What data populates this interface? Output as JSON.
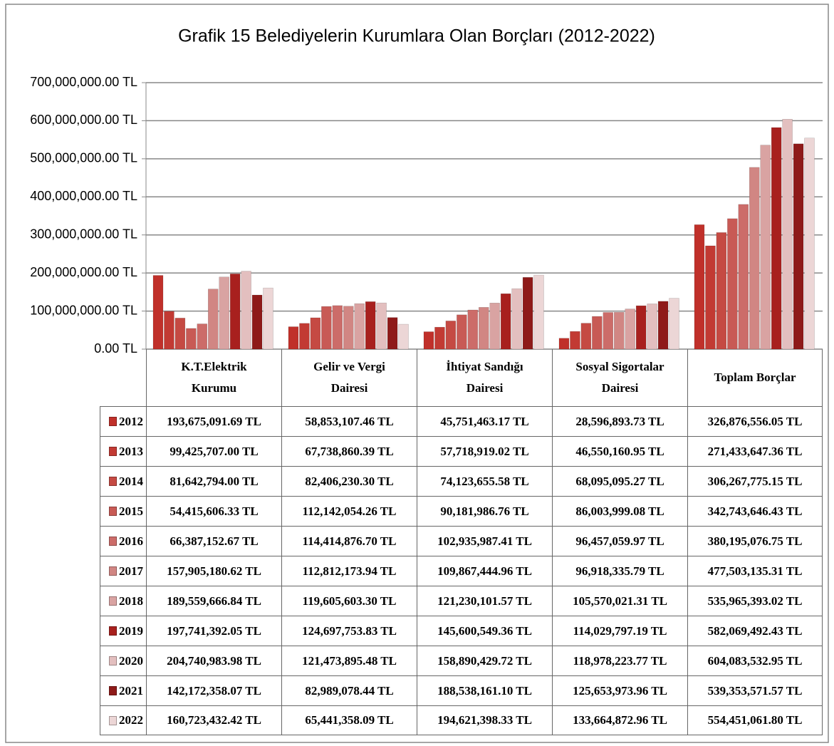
{
  "chart_data": {
    "type": "bar",
    "title": "Grafik 15  Belediyelerin Kurumlara Olan Borçları (2012-2022)",
    "categories": [
      "K.T.Elektrik Kurumu",
      "Gelir ve Vergi Dairesi",
      "İhtiyat Sandığı Dairesi",
      "Sosyal Sigortalar Dairesi",
      "Toplam Borçlar"
    ],
    "ylim": [
      0,
      700000000
    ],
    "yticks": [
      {
        "value": 0,
        "label": "0.00 TL"
      },
      {
        "value": 100000000,
        "label": "100,000,000.00 TL"
      },
      {
        "value": 200000000,
        "label": "200,000,000.00 TL"
      },
      {
        "value": 300000000,
        "label": "300,000,000.00 TL"
      },
      {
        "value": 400000000,
        "label": "400,000,000.00 TL"
      },
      {
        "value": 500000000,
        "label": "500,000,000.00 TL"
      },
      {
        "value": 600000000,
        "label": "600,000,000.00 TL"
      },
      {
        "value": 700000000,
        "label": "700,000,000.00 TL"
      }
    ],
    "grid": true,
    "series": [
      {
        "name": "2012",
        "color": "#c0302a",
        "values": [
          193675091.69,
          58853107.46,
          45751463.17,
          28596893.73,
          326876556.05
        ],
        "value_labels": [
          "193,675,091.69 TL",
          "58,853,107.46 TL",
          "45,751,463.17 TL",
          "28,596,893.73 TL",
          "326,876,556.05 TL"
        ]
      },
      {
        "name": "2013",
        "color": "#c23a33",
        "values": [
          99425707.0,
          67738860.39,
          57718919.02,
          46550160.95,
          271433647.36
        ],
        "value_labels": [
          "99,425,707.00 TL",
          "67,738,860.39 TL",
          "57,718,919.02 TL",
          "46,550,160.95 TL",
          "271,433,647.36 TL"
        ]
      },
      {
        "name": "2014",
        "color": "#c54a43",
        "values": [
          81642794.0,
          82406230.3,
          74123655.58,
          68095095.27,
          306267775.15
        ],
        "value_labels": [
          "81,642,794.00 TL",
          "82,406,230.30 TL",
          "74,123,655.58 TL",
          "68,095,095.27 TL",
          "306,267,775.15 TL"
        ]
      },
      {
        "name": "2015",
        "color": "#c85a55",
        "values": [
          54415606.33,
          112142054.26,
          90181986.76,
          86003999.08,
          342743646.43
        ],
        "value_labels": [
          "54,415,606.33 TL",
          "112,142,054.26 TL",
          "90,181,986.76 TL",
          "86,003,999.08 TL",
          "342,743,646.43 TL"
        ]
      },
      {
        "name": "2016",
        "color": "#cc6c69",
        "values": [
          66387152.67,
          114414876.7,
          102935987.41,
          96457059.97,
          380195076.75
        ],
        "value_labels": [
          "66,387,152.67 TL",
          "114,414,876.70 TL",
          "102,935,987.41 TL",
          "96,457,059.97 TL",
          "380,195,076.75 TL"
        ]
      },
      {
        "name": "2017",
        "color": "#d18683",
        "values": [
          157905180.62,
          112812173.94,
          109867444.96,
          96918335.79,
          477503135.31
        ],
        "value_labels": [
          "157,905,180.62 TL",
          "112,812,173.94 TL",
          "109,867,444.96 TL",
          "96,918,335.79 TL",
          "477,503,135.31 TL"
        ]
      },
      {
        "name": "2018",
        "color": "#d9a3a2",
        "values": [
          189559666.84,
          119605603.3,
          121230101.57,
          105570021.31,
          535965393.02
        ],
        "value_labels": [
          "189,559,666.84 TL",
          "119,605,603.30 TL",
          "121,230,101.57 TL",
          "105,570,021.31 TL",
          "535,965,393.02 TL"
        ]
      },
      {
        "name": "2019",
        "color": "#a8201e",
        "values": [
          197741392.05,
          124697753.83,
          145600549.36,
          114029797.19,
          582069492.43
        ],
        "value_labels": [
          "197,741,392.05 TL",
          "124,697,753.83 TL",
          "145,600,549.36 TL",
          "114,029,797.19 TL",
          "582,069,492.43 TL"
        ]
      },
      {
        "name": "2020",
        "color": "#e3bfbf",
        "values": [
          204740983.98,
          121473895.48,
          158890429.72,
          118978223.77,
          604083532.95
        ],
        "value_labels": [
          "204,740,983.98 TL",
          "121,473,895.48 TL",
          "158,890,429.72 TL",
          "118,978,223.77 TL",
          "604,083,532.95 TL"
        ]
      },
      {
        "name": "2021",
        "color": "#8e1a19",
        "values": [
          142172358.07,
          82989078.44,
          188538161.1,
          125653973.96,
          539353571.57
        ],
        "value_labels": [
          "142,172,358.07 TL",
          "82,989,078.44 TL",
          "188,538,161.10 TL",
          "125,653,973.96 TL",
          "539,353,571.57 TL"
        ]
      },
      {
        "name": "2022",
        "color": "#ecd6d6",
        "values": [
          160723432.42,
          65441358.09,
          194621398.33,
          133664872.96,
          554451061.8
        ],
        "value_labels": [
          "160,723,432.42 TL",
          "65,441,358.09 TL",
          "194,621,398.33 TL",
          "133,664,872.96 TL",
          "554,451,061.80 TL"
        ]
      }
    ]
  }
}
